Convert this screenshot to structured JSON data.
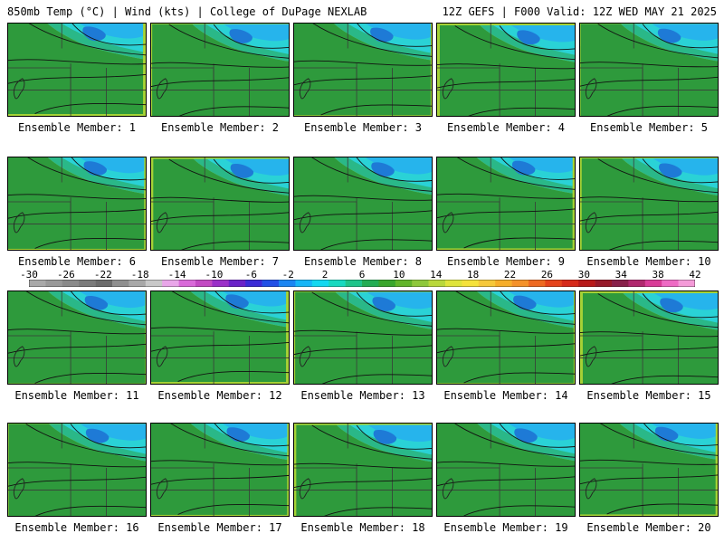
{
  "header": {
    "left": "850mb Temp (°C) | Wind (kts) | College of DuPage NEXLAB",
    "right": "12Z GEFS | F000 Valid: 12Z WED MAY 21 2025"
  },
  "panels": [
    {
      "label": "Ensemble Member: 1"
    },
    {
      "label": "Ensemble Member: 2"
    },
    {
      "label": "Ensemble Member: 3"
    },
    {
      "label": "Ensemble Member: 4"
    },
    {
      "label": "Ensemble Member: 5"
    },
    {
      "label": "Ensemble Member: 6"
    },
    {
      "label": "Ensemble Member: 7"
    },
    {
      "label": "Ensemble Member: 8"
    },
    {
      "label": "Ensemble Member: 9"
    },
    {
      "label": "Ensemble Member: 10"
    },
    {
      "label": "Ensemble Member: 11"
    },
    {
      "label": "Ensemble Member: 12"
    },
    {
      "label": "Ensemble Member: 13"
    },
    {
      "label": "Ensemble Member: 14"
    },
    {
      "label": "Ensemble Member: 15"
    },
    {
      "label": "Ensemble Member: 16"
    },
    {
      "label": "Ensemble Member: 17"
    },
    {
      "label": "Ensemble Member: 18"
    },
    {
      "label": "Ensemble Member: 19"
    },
    {
      "label": "Ensemble Member: 20"
    }
  ],
  "colorbar": {
    "min": -30,
    "max": 42,
    "tick_labels": [
      "-30",
      "-26",
      "-22",
      "-18",
      "-14",
      "-10",
      "-6",
      "-2",
      "2",
      "6",
      "10",
      "14",
      "18",
      "22",
      "26",
      "30",
      "34",
      "38",
      "42"
    ],
    "colors": [
      "#a9a9a9",
      "#999999",
      "#8a8a8a",
      "#7b7b7b",
      "#6c6c6c",
      "#8f8f8f",
      "#a8a8a8",
      "#c8c8c8",
      "#e9a6e9",
      "#d96ad9",
      "#c34ac3",
      "#9b30c8",
      "#6a22c8",
      "#3b2bd6",
      "#2250e6",
      "#1c86f2",
      "#17b6f7",
      "#14d8f0",
      "#18d9c0",
      "#1fc48a",
      "#23ad54",
      "#3aa62c",
      "#62b52a",
      "#8ec83a",
      "#b9d83a",
      "#dfe43a",
      "#f5e23a",
      "#f6c83a",
      "#f6ae2a",
      "#f4922a",
      "#ee6a22",
      "#e5441c",
      "#d62a1a",
      "#b81a1a",
      "#971a2a",
      "#88204a",
      "#b0286e",
      "#d93c98",
      "#ee6ac4",
      "#f49ad8"
    ]
  },
  "field_colors": {
    "cold_deep": "#1e7ad6",
    "cold": "#26b4ec",
    "cool": "#2ad2d6",
    "cool_green": "#2ab888",
    "green_dark": "#2e9a3c",
    "green": "#5fb234",
    "yellow_green": "#a6d236",
    "yellow": "#e6e23a",
    "orange_light": "#f5c232",
    "orange": "#f3a628",
    "orange_dark": "#ef8a22"
  }
}
